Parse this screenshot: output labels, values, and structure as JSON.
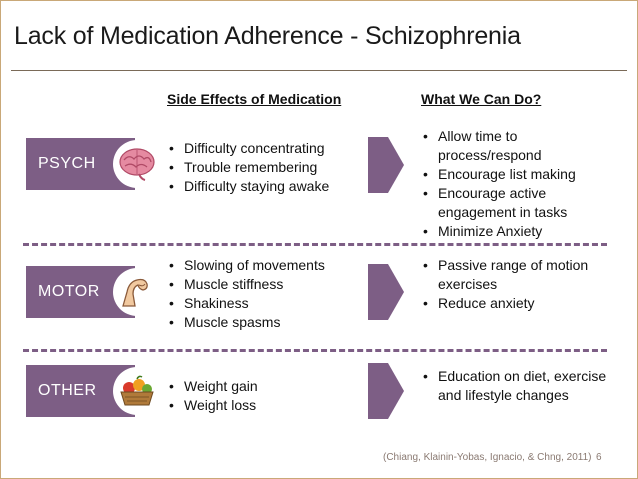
{
  "title": "Lack of Medication Adherence  - Schizophrenia",
  "headers": {
    "side_effects": "Side Effects of Medication",
    "what_we_can_do": "What We Can Do?"
  },
  "rows": [
    {
      "category": "PSYCH",
      "icon": "brain-icon",
      "side_effects": [
        "Difficulty concentrating",
        "Trouble remembering",
        "Difficulty staying awake"
      ],
      "actions": [
        "Allow time to process/respond",
        "Encourage list making",
        "Encourage active engagement in tasks",
        "Minimize Anxiety"
      ]
    },
    {
      "category": "MOTOR",
      "icon": "flexed-arm-icon",
      "side_effects": [
        "Slowing of movements",
        "Muscle stiffness",
        "Shakiness",
        "Muscle spasms"
      ],
      "actions": [
        "Passive range of motion exercises",
        "Reduce anxiety"
      ]
    },
    {
      "category": "OTHER",
      "icon": "food-basket-icon",
      "side_effects": [
        "Weight gain",
        "Weight loss"
      ],
      "actions": [
        "Education on diet, exercise and lifestyle changes"
      ]
    }
  ],
  "citation": "(Chiang, Klainin-Yobas, Ignacio, & Chng, 2011)",
  "page_number": "6",
  "colors": {
    "accent": "#7d5e85",
    "border": "#c9a878"
  }
}
